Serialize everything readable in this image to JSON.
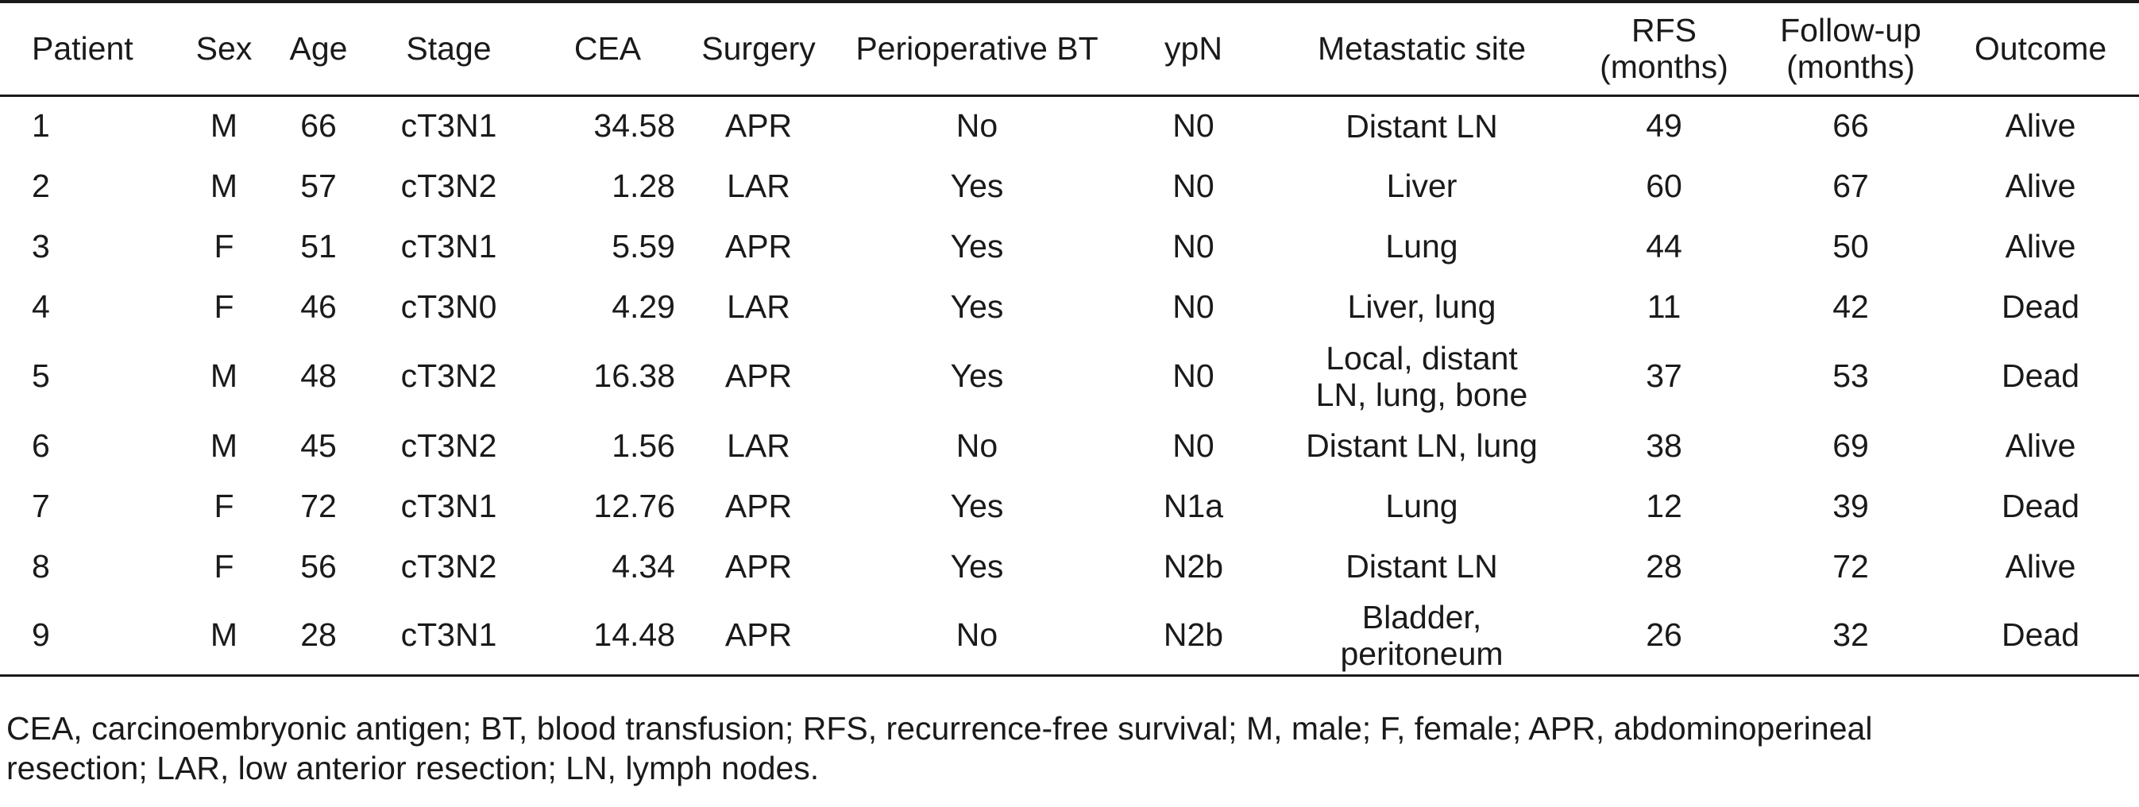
{
  "headers": {
    "patient": "Patient",
    "sex": "Sex",
    "age": "Age",
    "stage": "Stage",
    "cea": "CEA",
    "surgery": "Surgery",
    "bt": "Perioperative BT",
    "ypn": "ypN",
    "site": "Metastatic site",
    "rfs": "RFS\n(months)",
    "followup": "Follow-up\n(months)",
    "outcome": "Outcome"
  },
  "rows": [
    {
      "patient": "1",
      "sex": "M",
      "age": "66",
      "stage": "cT3N1",
      "cea": "34.58",
      "surgery": "APR",
      "bt": "No",
      "ypn": "N0",
      "site": "Distant LN",
      "rfs": "49",
      "followup": "66",
      "outcome": "Alive"
    },
    {
      "patient": "2",
      "sex": "M",
      "age": "57",
      "stage": "cT3N2",
      "cea": "1.28",
      "surgery": "LAR",
      "bt": "Yes",
      "ypn": "N0",
      "site": "Liver",
      "rfs": "60",
      "followup": "67",
      "outcome": "Alive"
    },
    {
      "patient": "3",
      "sex": "F",
      "age": "51",
      "stage": "cT3N1",
      "cea": "5.59",
      "surgery": "APR",
      "bt": "Yes",
      "ypn": "N0",
      "site": "Lung",
      "rfs": "44",
      "followup": "50",
      "outcome": "Alive"
    },
    {
      "patient": "4",
      "sex": "F",
      "age": "46",
      "stage": "cT3N0",
      "cea": "4.29",
      "surgery": "LAR",
      "bt": "Yes",
      "ypn": "N0",
      "site": "Liver, lung",
      "rfs": "11",
      "followup": "42",
      "outcome": "Dead"
    },
    {
      "patient": "5",
      "sex": "M",
      "age": "48",
      "stage": "cT3N2",
      "cea": "16.38",
      "surgery": "APR",
      "bt": "Yes",
      "ypn": "N0",
      "site": "Local, distant\nLN, lung, bone",
      "rfs": "37",
      "followup": "53",
      "outcome": "Dead"
    },
    {
      "patient": "6",
      "sex": "M",
      "age": "45",
      "stage": "cT3N2",
      "cea": "1.56",
      "surgery": "LAR",
      "bt": "No",
      "ypn": "N0",
      "site": "Distant LN, lung",
      "rfs": "38",
      "followup": "69",
      "outcome": "Alive"
    },
    {
      "patient": "7",
      "sex": "F",
      "age": "72",
      "stage": "cT3N1",
      "cea": "12.76",
      "surgery": "APR",
      "bt": "Yes",
      "ypn": "N1a",
      "site": "Lung",
      "rfs": "12",
      "followup": "39",
      "outcome": "Dead"
    },
    {
      "patient": "8",
      "sex": "F",
      "age": "56",
      "stage": "cT3N2",
      "cea": "4.34",
      "surgery": "APR",
      "bt": "Yes",
      "ypn": "N2b",
      "site": "Distant LN",
      "rfs": "28",
      "followup": "72",
      "outcome": "Alive"
    },
    {
      "patient": "9",
      "sex": "M",
      "age": "28",
      "stage": "cT3N1",
      "cea": "14.48",
      "surgery": "APR",
      "bt": "No",
      "ypn": "N2b",
      "site": "Bladder,\nperitoneum",
      "rfs": "26",
      "followup": "32",
      "outcome": "Dead"
    }
  ],
  "footnote": {
    "line1": "CEA, carcinoembryonic antigen; BT, blood transfusion; RFS, recurrence-free survival; M, male; F, female; APR, abdominoperineal",
    "line2": "resection; LAR, low anterior resection; LN, lymph nodes."
  }
}
